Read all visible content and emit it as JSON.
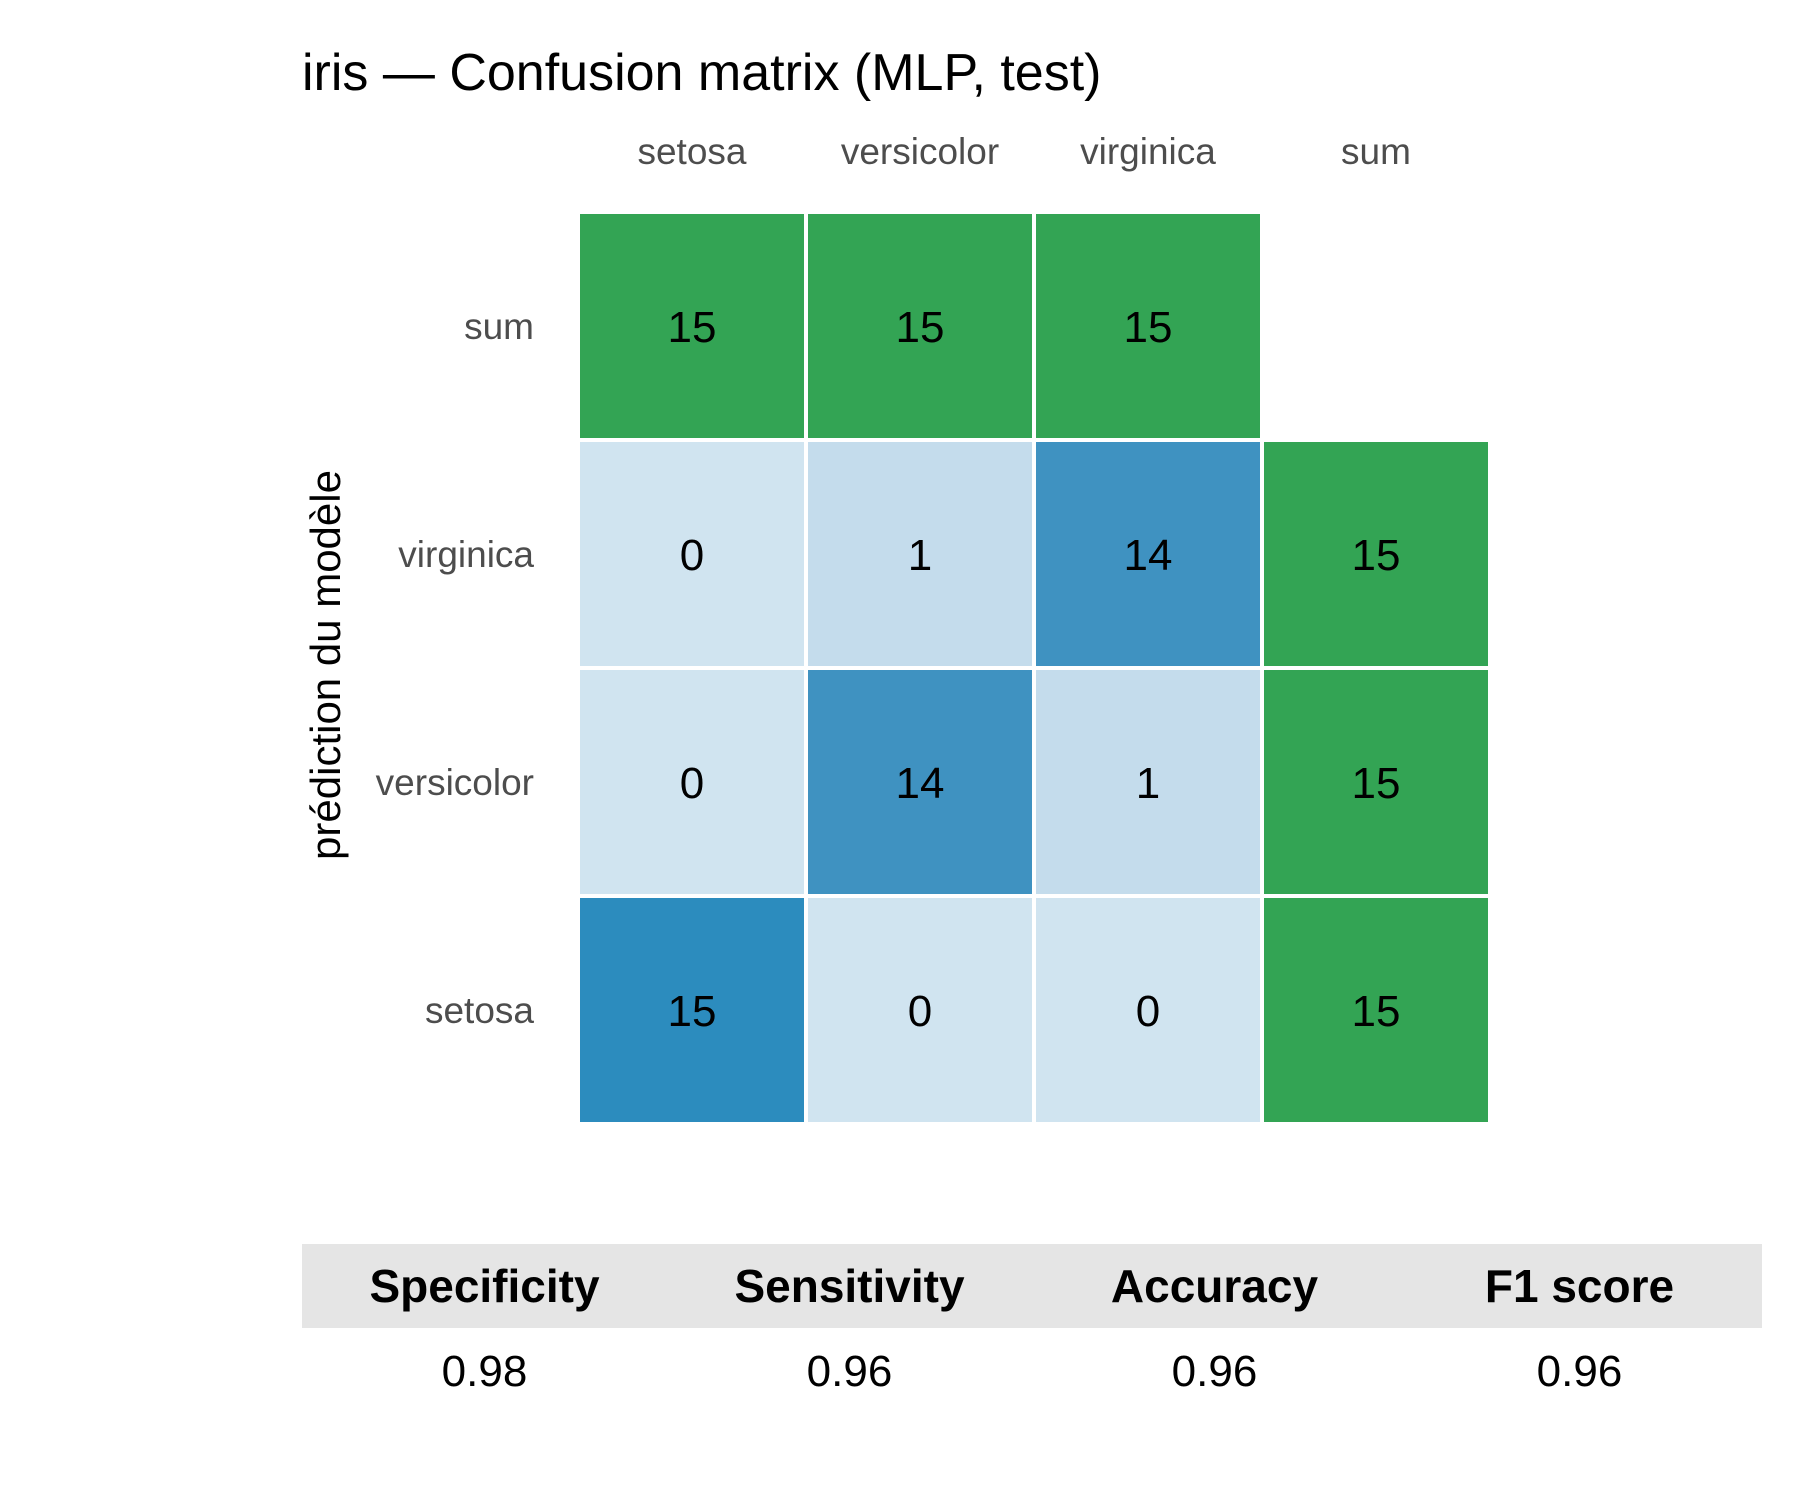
{
  "chart_data": {
    "type": "heatmap",
    "title": "iris — Confusion matrix (MLP, test)",
    "xlabel": "",
    "ylabel": "prédiction du modèle",
    "x_categories": [
      "setosa",
      "versicolor",
      "virginica",
      "sum"
    ],
    "y_categories": [
      "sum",
      "virginica",
      "versicolor",
      "setosa"
    ],
    "matrix": {
      "rows": [
        "setosa",
        "versicolor",
        "virginica"
      ],
      "columns": [
        "setosa",
        "versicolor",
        "virginica"
      ],
      "values": [
        [
          15,
          0,
          0
        ],
        [
          0,
          14,
          1
        ],
        [
          0,
          1,
          14
        ]
      ]
    },
    "row_sums": [
      15,
      15,
      15
    ],
    "column_sums": [
      15,
      15,
      15
    ],
    "colors": {
      "sum_cells": "#33a454",
      "diagonal_high": "#2c8cbe",
      "diagonal_mid": "#3f92c1",
      "low": "#d0e4f0",
      "one": "#c4dcec"
    },
    "grid": false,
    "legend": "none"
  },
  "metrics": {
    "headers": [
      "Specificity",
      "Sensitivity",
      "Accuracy",
      "F1 score"
    ],
    "values": [
      "0.98",
      "0.96",
      "0.96",
      "0.96"
    ]
  }
}
